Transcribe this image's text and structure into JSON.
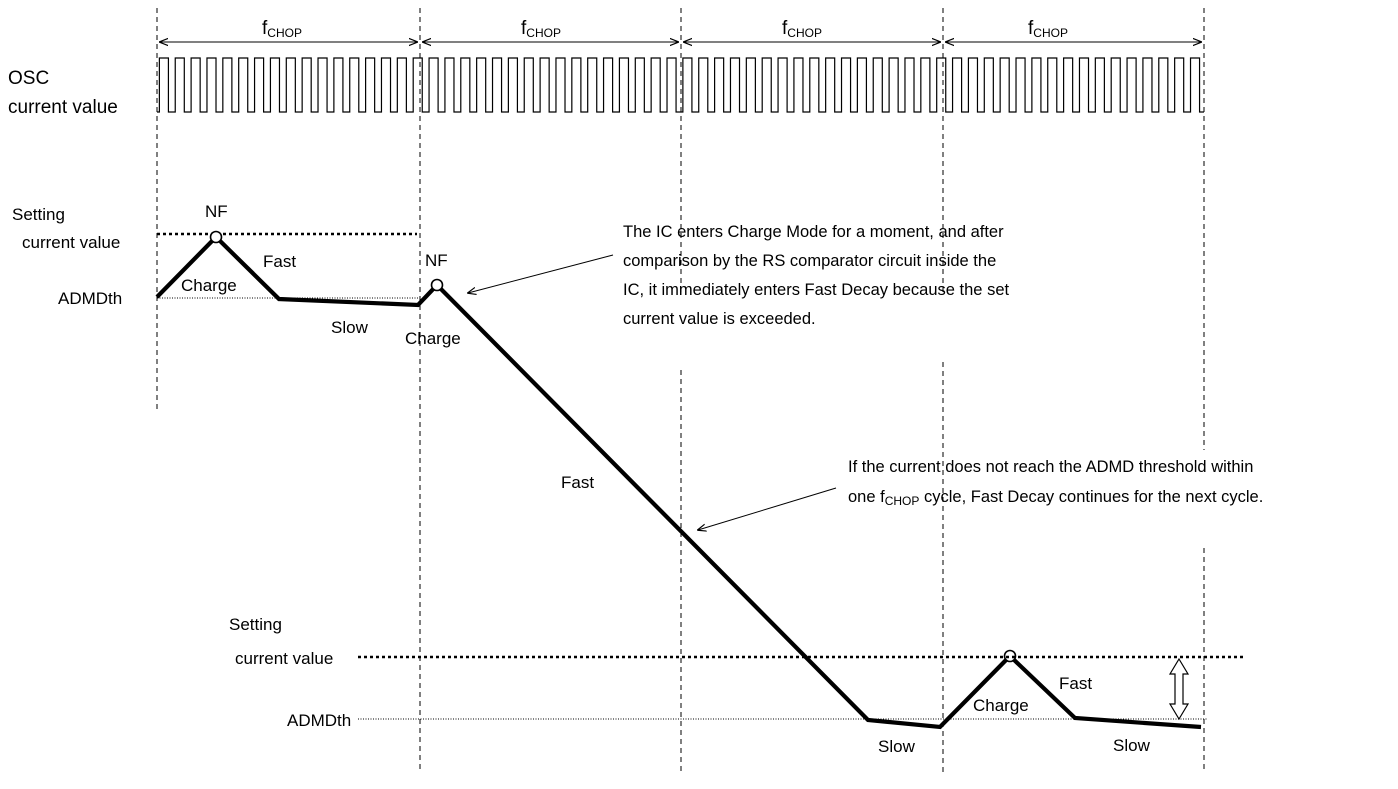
{
  "diagram": {
    "chop_label": {
      "main": "f",
      "sub": "CHOP"
    },
    "osc_label": [
      "OSC",
      "current value"
    ],
    "upper": {
      "setting_label": [
        "Setting",
        "current value"
      ],
      "admd_label": "ADMDth",
      "nf_labels": [
        "NF",
        "NF"
      ],
      "phase_labels": [
        "Charge",
        "Fast",
        "Slow",
        "Charge"
      ]
    },
    "annotation_1": [
      "The IC enters Charge Mode for a moment, and after",
      "comparison by the RS comparator circuit inside the",
      "IC, it immediately enters Fast Decay because the set",
      "current value is exceeded."
    ],
    "annotation_2": {
      "line1": "If the current does not reach the ADMD threshold within",
      "line2_prefix": "one ",
      "line2_main": "f",
      "line2_sub": "CHOP",
      "line2_suffix": " cycle, Fast Decay continues for the next cycle."
    },
    "mid_fast_label": "Fast",
    "lower": {
      "setting_label": [
        "Setting",
        "current value"
      ],
      "admd_label": "ADMDth",
      "phase_labels": [
        "Slow",
        "Charge",
        "Fast",
        "Slow"
      ]
    },
    "colors": {
      "line": "#000000",
      "background": "#ffffff"
    }
  }
}
